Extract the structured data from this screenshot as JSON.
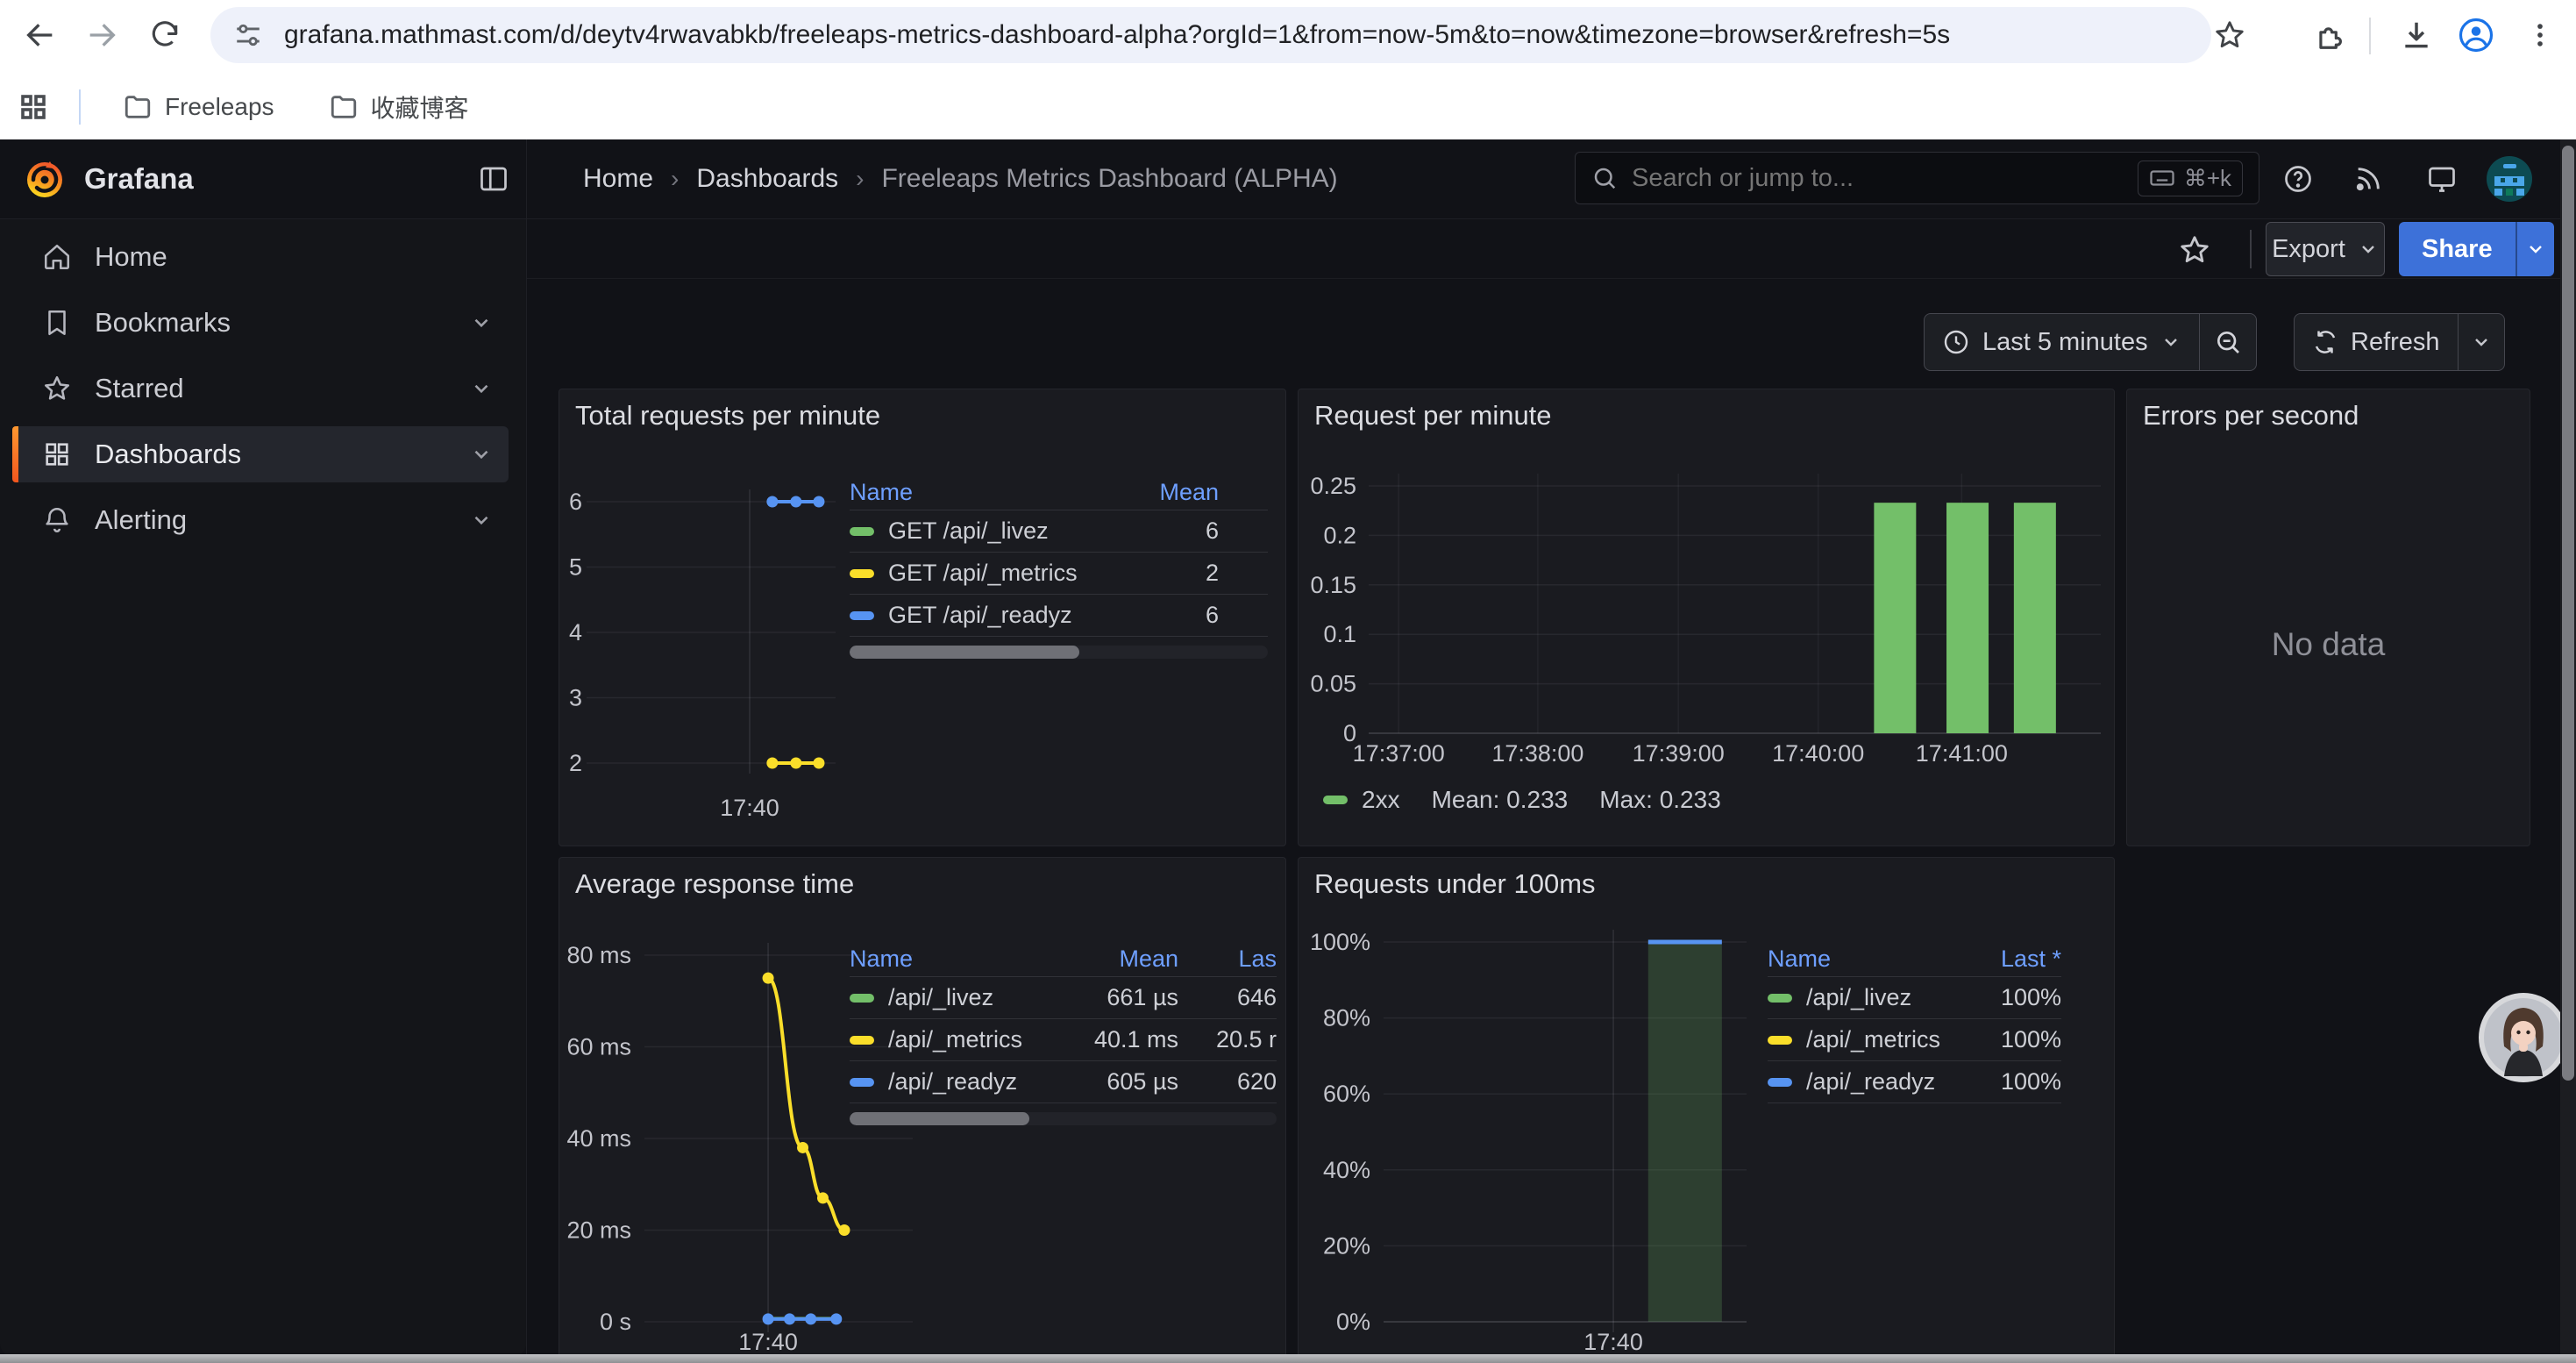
{
  "browser": {
    "url": "grafana.mathmast.com/d/deytv4rwavabkb/freeleaps-metrics-dashboard-alpha?orgId=1&from=now-5m&to=now&timezone=browser&refresh=5s",
    "bookmarks": [
      "Freeleaps",
      "收藏博客"
    ]
  },
  "header": {
    "brand": "Grafana",
    "breadcrumb": {
      "items": [
        "Home",
        "Dashboards",
        "Freeleaps Metrics Dashboard (ALPHA)"
      ],
      "separator": "›"
    },
    "search": {
      "placeholder": "Search or jump to...",
      "shortcut": "⌘+k"
    }
  },
  "sidebar": {
    "items": [
      {
        "label": "Home"
      },
      {
        "label": "Bookmarks"
      },
      {
        "label": "Starred"
      },
      {
        "label": "Dashboards"
      },
      {
        "label": "Alerting"
      }
    ]
  },
  "actions": {
    "export": "Export",
    "share": "Share"
  },
  "timebar": {
    "range": "Last 5 minutes",
    "refresh": "Refresh"
  },
  "colors": {
    "primary_blue": "#3d71d9",
    "legend_header_blue": "#6e9fff",
    "series_green": "#73bf69",
    "series_yellow": "#fade2a",
    "series_blue": "#5794f2",
    "active_indicator_orange": "#ff8833"
  },
  "chart_data": [
    {
      "type": "line",
      "title": "Total requests per minute",
      "x_ticks": [
        "17:40"
      ],
      "y_ticks": [
        {
          "v": 6,
          "label": "6"
        },
        {
          "v": 5,
          "label": "5"
        },
        {
          "v": 4,
          "label": "4"
        },
        {
          "v": 3,
          "label": "3"
        },
        {
          "v": 2,
          "label": "2"
        }
      ],
      "ylim": [
        2,
        6
      ],
      "legend_columns": [
        "Name",
        "Mean"
      ],
      "series": [
        {
          "name": "GET /api/_livez",
          "color": "#73bf69",
          "mean": "6",
          "dots": false,
          "points": [
            [
              0.746,
              6
            ],
            [
              0.841,
              6
            ],
            [
              0.933,
              6
            ]
          ]
        },
        {
          "name": "GET /api/_metrics",
          "color": "#fade2a",
          "mean": "2",
          "points": [
            [
              0.746,
              2
            ],
            [
              0.841,
              2
            ],
            [
              0.933,
              2
            ]
          ]
        },
        {
          "name": "GET /api/_readyz",
          "color": "#5794f2",
          "mean": "6",
          "points": [
            [
              0.746,
              6
            ],
            [
              0.841,
              6
            ],
            [
              0.933,
              6
            ]
          ]
        }
      ]
    },
    {
      "type": "bar",
      "title": "Request per minute",
      "x_ticks": [
        "17:37:00",
        "17:38:00",
        "17:39:00",
        "17:40:00",
        "17:41:00"
      ],
      "y_ticks": [
        {
          "v": 0,
          "label": "0"
        },
        {
          "v": 0.05,
          "label": "0.05"
        },
        {
          "v": 0.1,
          "label": "0.1"
        },
        {
          "v": 0.15,
          "label": "0.15"
        },
        {
          "v": 0.2,
          "label": "0.2"
        },
        {
          "v": 0.25,
          "label": "0.25"
        }
      ],
      "ylim": [
        0,
        0.25
      ],
      "series": [
        {
          "name": "2xx",
          "color": "#73bf69",
          "values": [
            0.233,
            0.233,
            0.233
          ],
          "mean": 0.233,
          "max": 0.233
        }
      ],
      "legend": {
        "name": "2xx",
        "mean": "Mean: 0.233",
        "max": "Max: 0.233"
      }
    },
    {
      "type": "none",
      "title": "Errors per second",
      "message": "No data"
    },
    {
      "type": "line",
      "title": "Average response time",
      "x_ticks": [
        "17:40"
      ],
      "y_ticks": [
        {
          "v": 80,
          "label": "80 ms"
        },
        {
          "v": 60,
          "label": "60 ms"
        },
        {
          "v": 40,
          "label": "40 ms"
        },
        {
          "v": 20,
          "label": "20 ms"
        },
        {
          "v": 0,
          "label": "0 s"
        }
      ],
      "ylim": [
        0,
        80
      ],
      "unit": "ms",
      "legend_columns": [
        "Name",
        "Mean",
        "Las"
      ],
      "series": [
        {
          "name": "/api/_livez",
          "color": "#73bf69",
          "mean": "661 µs",
          "last": "646",
          "dots": false,
          "points": [
            [
              0.461,
              0.66
            ],
            [
              0.715,
              0.66
            ]
          ]
        },
        {
          "name": "/api/_metrics",
          "color": "#fade2a",
          "mean": "40.1 ms",
          "last": "20.5 r",
          "smooth": true,
          "points": [
            [
              0.461,
              75
            ],
            [
              0.59,
              38
            ],
            [
              0.665,
              27
            ],
            [
              0.745,
              20
            ]
          ]
        },
        {
          "name": "/api/_readyz",
          "color": "#5794f2",
          "mean": "605 µs",
          "last": "620",
          "points": [
            [
              0.461,
              0.6
            ],
            [
              0.541,
              0.6
            ],
            [
              0.62,
              0.6
            ],
            [
              0.715,
              0.6
            ]
          ]
        }
      ]
    },
    {
      "type": "area",
      "title": "Requests under 100ms",
      "x_ticks": [
        "17:40"
      ],
      "y_ticks": [
        {
          "v": 0,
          "label": "0%"
        },
        {
          "v": 20,
          "label": "20%"
        },
        {
          "v": 40,
          "label": "40%"
        },
        {
          "v": 60,
          "label": "60%"
        },
        {
          "v": 80,
          "label": "80%"
        },
        {
          "v": 100,
          "label": "100%"
        }
      ],
      "ylim": [
        0,
        100
      ],
      "legend_columns": [
        "Name",
        "Last *"
      ],
      "area": {
        "from_frac": 0.729,
        "to_frac": 0.932,
        "value": 100,
        "fill": "#73bf69",
        "fill_opacity": 0.22,
        "top_color": "#5794f2"
      },
      "series": [
        {
          "name": "/api/_livez",
          "color": "#73bf69",
          "last": "100%"
        },
        {
          "name": "/api/_metrics",
          "color": "#fade2a",
          "last": "100%"
        },
        {
          "name": "/api/_readyz",
          "color": "#5794f2",
          "last": "100%"
        }
      ]
    }
  ]
}
